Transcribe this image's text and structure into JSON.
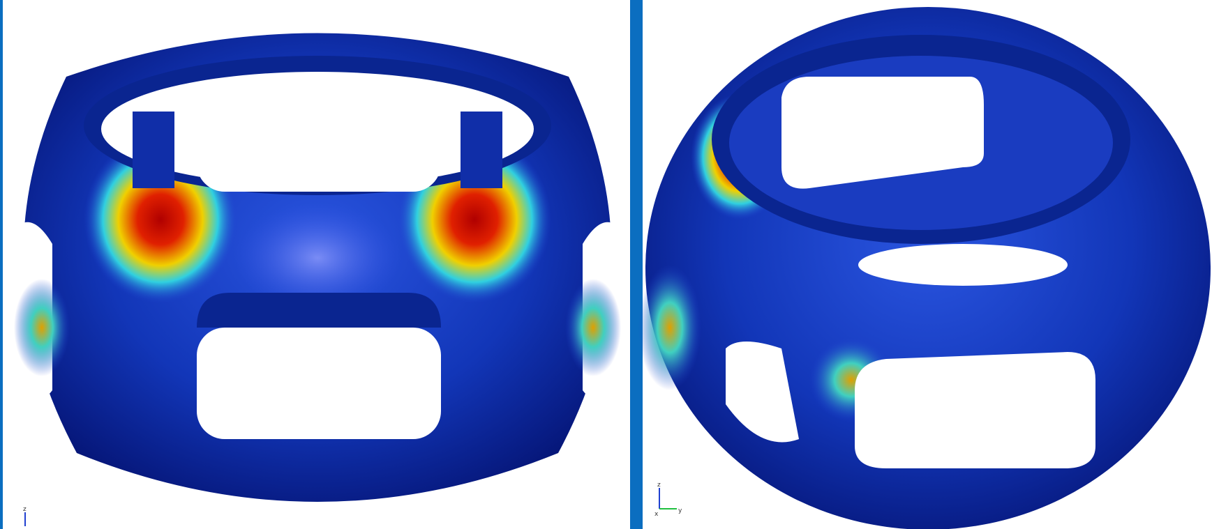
{
  "panels": [
    {
      "axis_labels": [
        "z"
      ]
    },
    {
      "axis_labels": [
        "z",
        "x",
        "y"
      ]
    }
  ]
}
